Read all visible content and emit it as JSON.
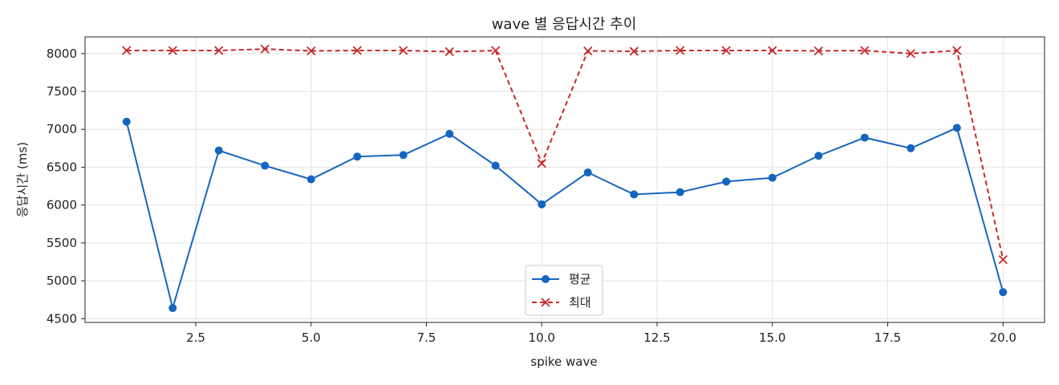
{
  "chart_data": {
    "type": "line",
    "title": "wave 별 응답시간 추이",
    "xlabel": "spike wave",
    "ylabel": "응답시간 (ms)",
    "xlim": [
      0.1,
      20.9
    ],
    "ylim": [
      4450,
      8220
    ],
    "xticks": [
      2.5,
      5.0,
      7.5,
      10.0,
      12.5,
      15.0,
      17.5,
      20.0
    ],
    "xtick_labels": [
      "2.5",
      "5.0",
      "7.5",
      "10.0",
      "12.5",
      "15.0",
      "17.5",
      "20.0"
    ],
    "yticks": [
      4500,
      5000,
      5500,
      6000,
      6500,
      7000,
      7500,
      8000
    ],
    "ytick_labels": [
      "4500",
      "5000",
      "5500",
      "6000",
      "6500",
      "7000",
      "7500",
      "8000"
    ],
    "grid": true,
    "legend_position": "lower-center",
    "x": [
      1,
      2,
      3,
      4,
      5,
      6,
      7,
      8,
      9,
      10,
      11,
      12,
      13,
      14,
      15,
      16,
      17,
      18,
      19,
      20
    ],
    "series": [
      {
        "name": "평균",
        "color": "#1565c0",
        "line_style": "solid",
        "marker": "circle",
        "values": [
          7100,
          4640,
          6720,
          6520,
          6340,
          6640,
          6660,
          6940,
          6520,
          6010,
          6430,
          6140,
          6170,
          6310,
          6360,
          6650,
          6890,
          6750,
          7020,
          4850
        ]
      },
      {
        "name": "최대",
        "color": "#c62828",
        "line_style": "dashed",
        "marker": "x",
        "values": [
          8040,
          8040,
          8040,
          8060,
          8035,
          8040,
          8040,
          8025,
          8040,
          6550,
          8035,
          8030,
          8040,
          8040,
          8040,
          8035,
          8040,
          8000,
          8040,
          5280
        ]
      }
    ]
  }
}
